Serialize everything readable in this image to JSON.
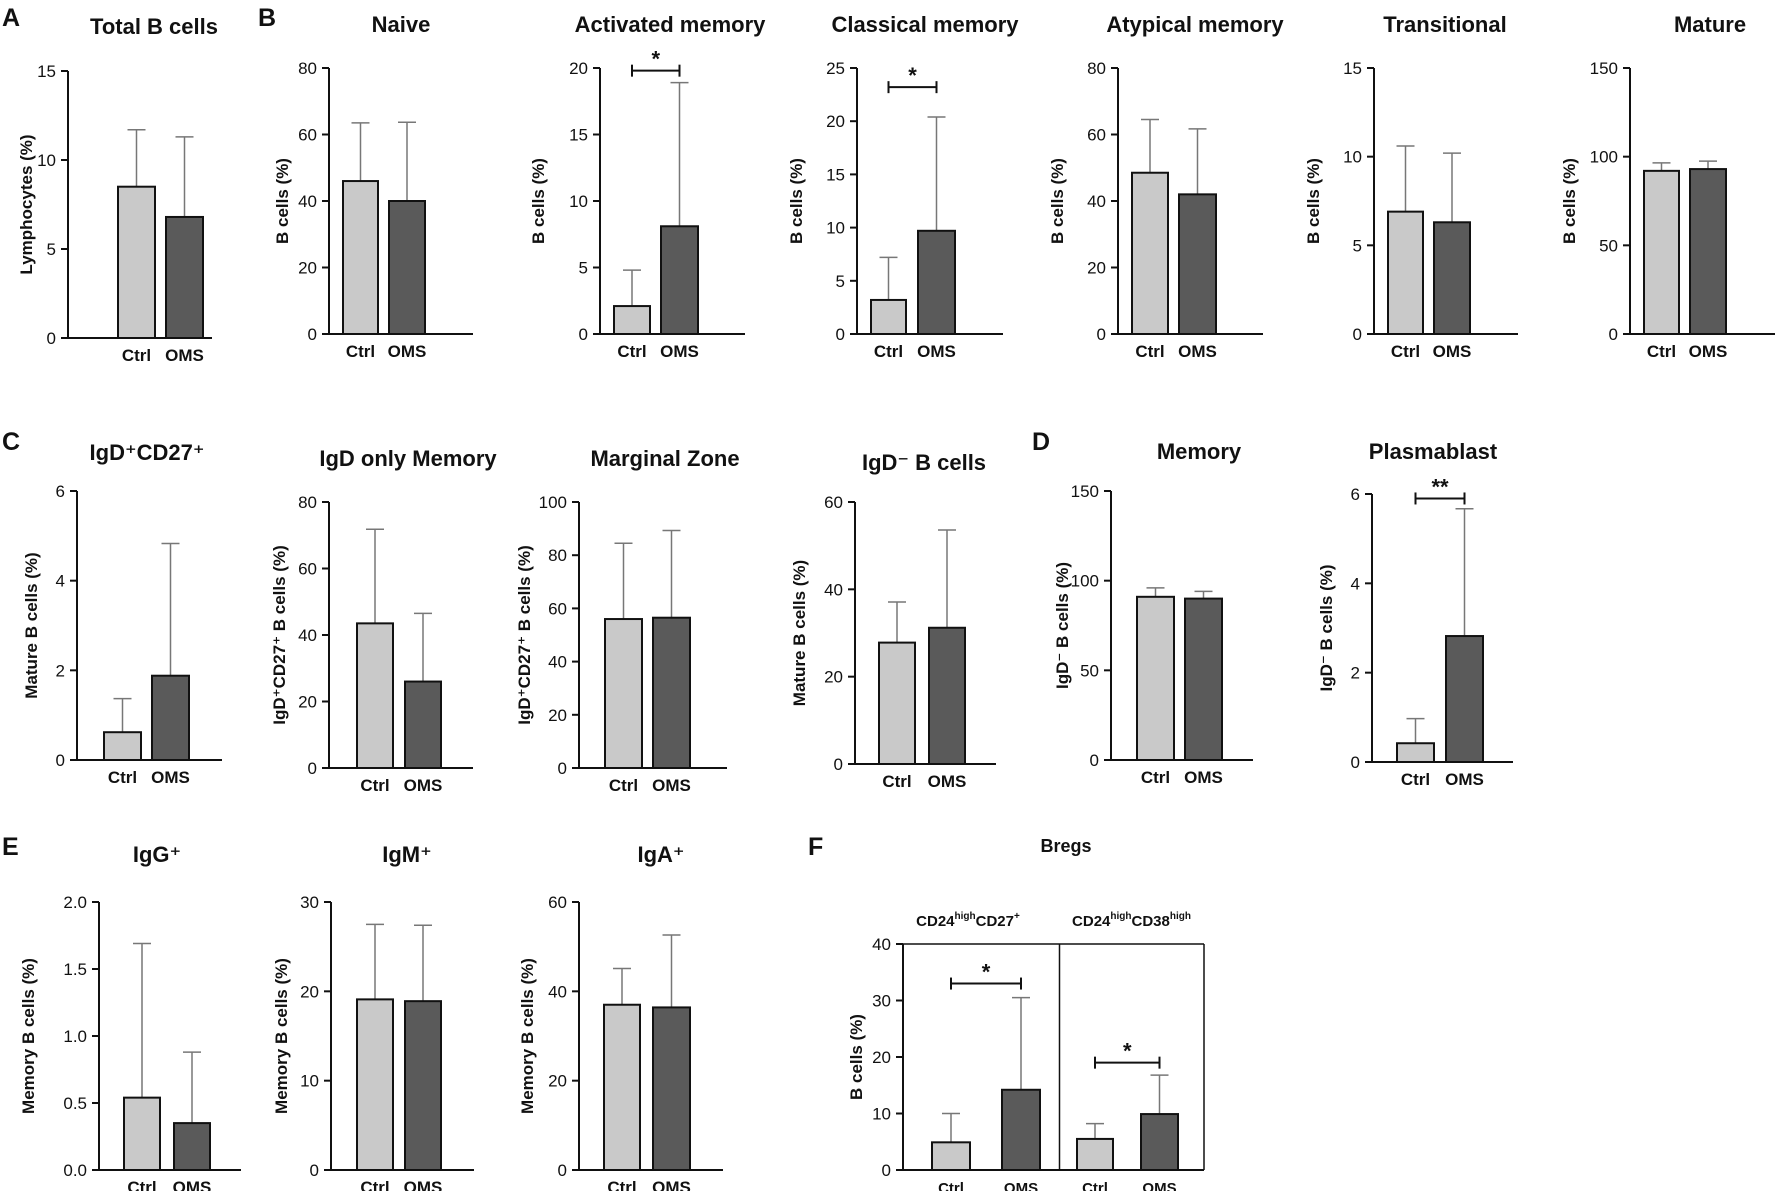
{
  "figure": {
    "panel_labels": [
      "A",
      "B",
      "C",
      "D",
      "E",
      "F"
    ],
    "colors": {
      "ctrl": "#c9c9c9",
      "oms": "#5a5a5a",
      "axis": "#111111",
      "error_bar": "#777777"
    }
  },
  "chart_data": [
    {
      "id": "c01",
      "panel": "A",
      "type": "bar",
      "title": "Total B cells",
      "ylabel": "Lymphocytes (%)",
      "ylim": [
        0,
        15
      ],
      "yticks": [
        "0",
        "5",
        "10",
        "15"
      ],
      "categories": [
        "Ctrl",
        "OMS"
      ],
      "values": [
        8.5,
        6.8
      ],
      "errors": [
        3.2,
        4.5
      ],
      "significance": []
    },
    {
      "id": "c02",
      "panel": "B",
      "type": "bar",
      "title": "Naive",
      "ylabel": "B cells (%)",
      "ylim": [
        0,
        80
      ],
      "yticks": [
        "0",
        "20",
        "40",
        "60",
        "80"
      ],
      "categories": [
        "Ctrl",
        "OMS"
      ],
      "values": [
        46,
        40
      ],
      "errors": [
        17.5,
        23.7
      ],
      "significance": []
    },
    {
      "id": "c03",
      "panel": "",
      "type": "bar",
      "title": "Activated memory",
      "ylabel": "B cells (%)",
      "ylim": [
        0,
        20
      ],
      "yticks": [
        "0",
        "5",
        "10",
        "15",
        "20"
      ],
      "categories": [
        "Ctrl",
        "OMS"
      ],
      "values": [
        2.1,
        8.1
      ],
      "errors": [
        2.7,
        10.8
      ],
      "significance": [
        {
          "label": "*",
          "pair": [
            "Ctrl",
            "OMS"
          ],
          "y": 19.8
        }
      ]
    },
    {
      "id": "c04",
      "panel": "",
      "type": "bar",
      "title": "Classical memory",
      "ylabel": "B cells (%)",
      "ylim": [
        0,
        25
      ],
      "yticks": [
        "0",
        "5",
        "10",
        "15",
        "20",
        "25"
      ],
      "categories": [
        "Ctrl",
        "OMS"
      ],
      "values": [
        3.2,
        9.7
      ],
      "errors": [
        4,
        10.7
      ],
      "significance": [
        {
          "label": "*",
          "pair": [
            "Ctrl",
            "OMS"
          ],
          "y": 23.2
        }
      ]
    },
    {
      "id": "c05",
      "panel": "",
      "type": "bar",
      "title": "Atypical memory",
      "ylabel": "B cells (%)",
      "ylim": [
        0,
        80
      ],
      "yticks": [
        "0",
        "20",
        "40",
        "60",
        "80"
      ],
      "categories": [
        "Ctrl",
        "OMS"
      ],
      "values": [
        48.5,
        42
      ],
      "errors": [
        16,
        19.7
      ],
      "significance": []
    },
    {
      "id": "c06",
      "panel": "",
      "type": "bar",
      "title": "Transitional",
      "ylabel": "B cells (%)",
      "ylim": [
        0,
        15
      ],
      "yticks": [
        "0",
        "5",
        "10",
        "15"
      ],
      "categories": [
        "Ctrl",
        "OMS"
      ],
      "values": [
        6.9,
        6.3
      ],
      "errors": [
        3.7,
        3.9
      ],
      "significance": []
    },
    {
      "id": "c07",
      "panel": "",
      "type": "bar",
      "title": "Mature",
      "ylabel": "B cells (%)",
      "ylim": [
        0,
        150
      ],
      "yticks": [
        "0",
        "50",
        "100",
        "150"
      ],
      "categories": [
        "Ctrl",
        "OMS"
      ],
      "values": [
        92,
        93
      ],
      "errors": [
        4.5,
        4.5
      ],
      "significance": []
    },
    {
      "id": "c08",
      "panel": "C",
      "type": "bar",
      "title": "IgD⁺CD27⁺",
      "ylabel": "Mature B cells (%)",
      "ylim": [
        0,
        6
      ],
      "yticks": [
        "0",
        "2",
        "4",
        "6"
      ],
      "categories": [
        "Ctrl",
        "OMS"
      ],
      "values": [
        0.62,
        1.88
      ],
      "errors": [
        0.75,
        2.95
      ],
      "significance": []
    },
    {
      "id": "c09",
      "panel": "",
      "type": "bar",
      "title": "IgD only Memory",
      "ylabel": "IgD⁺CD27⁺ B cells (%)",
      "ylim": [
        0,
        80
      ],
      "yticks": [
        "0",
        "20",
        "40",
        "60",
        "80"
      ],
      "categories": [
        "Ctrl",
        "OMS"
      ],
      "values": [
        43.5,
        26
      ],
      "errors": [
        28.3,
        20.5
      ],
      "significance": []
    },
    {
      "id": "c10",
      "panel": "",
      "type": "bar",
      "title": "Marginal Zone",
      "ylabel": "IgD⁺CD27⁺ B cells (%)",
      "ylim": [
        0,
        100
      ],
      "yticks": [
        "0",
        "20",
        "40",
        "60",
        "80",
        "100"
      ],
      "categories": [
        "Ctrl",
        "OMS"
      ],
      "values": [
        56,
        56.5
      ],
      "errors": [
        28.5,
        32.8
      ],
      "significance": []
    },
    {
      "id": "c11",
      "panel": "",
      "type": "bar",
      "title": "IgD⁻ B cells",
      "ylabel": "Mature B cells (%)",
      "ylim": [
        0,
        60
      ],
      "yticks": [
        "0",
        "20",
        "40",
        "60"
      ],
      "categories": [
        "Ctrl",
        "OMS"
      ],
      "values": [
        27.8,
        31.2
      ],
      "errors": [
        9.3,
        22.4
      ],
      "significance": []
    },
    {
      "id": "c12",
      "panel": "D",
      "type": "bar",
      "title": "Memory",
      "ylabel": "IgD⁻ B cells (%)",
      "ylim": [
        0,
        150
      ],
      "yticks": [
        "0",
        "50",
        "100",
        "150"
      ],
      "categories": [
        "Ctrl",
        "OMS"
      ],
      "values": [
        91,
        90
      ],
      "errors": [
        5,
        4
      ],
      "significance": []
    },
    {
      "id": "c13",
      "panel": "",
      "type": "bar",
      "title": "Plasmablast",
      "ylabel": "IgD⁻ B cells (%)",
      "ylim": [
        0,
        6
      ],
      "yticks": [
        "0",
        "2",
        "4",
        "6"
      ],
      "categories": [
        "Ctrl",
        "OMS"
      ],
      "values": [
        0.42,
        2.82
      ],
      "errors": [
        0.55,
        2.85
      ],
      "significance": [
        {
          "label": "**",
          "pair": [
            "Ctrl",
            "OMS"
          ],
          "y": 5.9
        }
      ]
    },
    {
      "id": "c14",
      "panel": "E",
      "type": "bar",
      "title": "IgG⁺",
      "ylabel": "Memory B cells (%)",
      "ylim": [
        0,
        2
      ],
      "yticks": [
        "0.0",
        "0.5",
        "1.0",
        "1.5",
        "2.0"
      ],
      "categories": [
        "Ctrl",
        "OMS"
      ],
      "values": [
        0.54,
        0.35
      ],
      "errors": [
        1.15,
        0.53
      ],
      "significance": []
    },
    {
      "id": "c15",
      "panel": "",
      "type": "bar",
      "title": "IgM⁺",
      "ylabel": "Memory B cells (%)",
      "ylim": [
        0,
        30
      ],
      "yticks": [
        "0",
        "10",
        "20",
        "30"
      ],
      "categories": [
        "Ctrl",
        "OMS"
      ],
      "values": [
        19.1,
        18.9
      ],
      "errors": [
        8.4,
        8.5
      ],
      "significance": []
    },
    {
      "id": "c16",
      "panel": "",
      "type": "bar",
      "title": "IgA⁺",
      "ylabel": "Memory B cells (%)",
      "ylim": [
        0,
        60
      ],
      "yticks": [
        "0",
        "20",
        "40",
        "60"
      ],
      "categories": [
        "Ctrl",
        "OMS"
      ],
      "values": [
        37,
        36.4
      ],
      "errors": [
        8.1,
        16.2
      ],
      "significance": []
    },
    {
      "id": "c17",
      "panel": "F",
      "type": "grouped-bar",
      "title": "Bregs",
      "ylabel": "B cells (%)",
      "ylim": [
        0,
        40
      ],
      "yticks": [
        "0",
        "10",
        "20",
        "30",
        "40"
      ],
      "categories": [
        "Ctrl",
        "OMS",
        "Ctrl",
        "OMS"
      ],
      "groups": [
        {
          "name": "CD24",
          "sup1": "high",
          "mid": "CD27",
          "sup2": "+"
        },
        {
          "name": "CD24",
          "sup1": "high",
          "mid": "CD38",
          "sup2": "high"
        }
      ],
      "values": [
        4.9,
        14.2,
        5.5,
        9.9
      ],
      "errors": [
        5.1,
        16.3,
        2.7,
        6.9
      ],
      "significance": [
        {
          "label": "*",
          "pair": [
            0,
            1
          ],
          "y": 33
        },
        {
          "label": "*",
          "pair": [
            2,
            3
          ],
          "y": 19
        }
      ]
    }
  ]
}
